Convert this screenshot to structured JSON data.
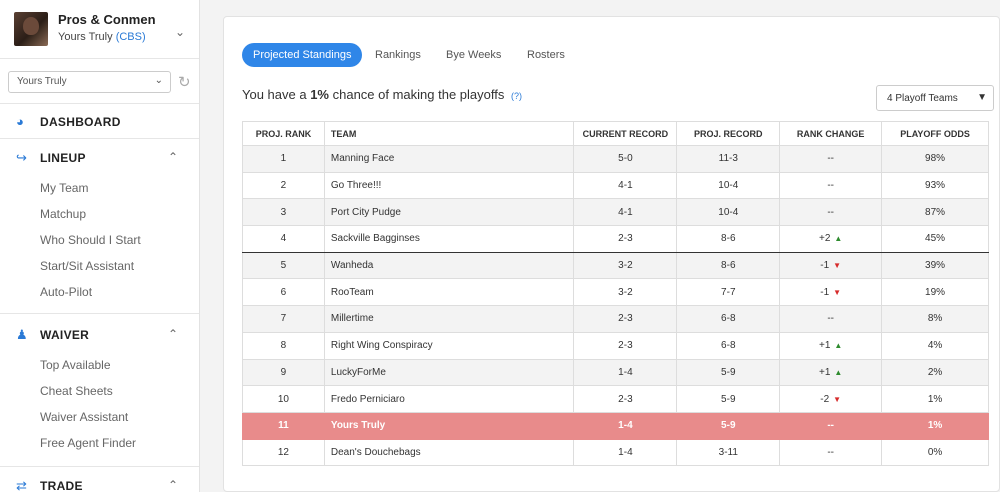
{
  "sidebar": {
    "league_name": "Pros & Conmen",
    "team_owner": "Yours Truly",
    "provider": "(CBS)",
    "team_select_value": "Yours Truly",
    "sections": {
      "dashboard": "DASHBOARD",
      "lineup": "LINEUP",
      "waiver": "WAIVER",
      "trade": "TRADE"
    },
    "lineup_items": [
      "My Team",
      "Matchup",
      "Who Should I Start",
      "Start/Sit Assistant",
      "Auto-Pilot"
    ],
    "waiver_items": [
      "Top Available",
      "Cheat Sheets",
      "Waiver Assistant",
      "Free Agent Finder"
    ],
    "colors": {
      "accent": "#2a7ad6"
    }
  },
  "main": {
    "tabs": [
      "Projected Standings",
      "Rankings",
      "Bye Weeks",
      "Rosters"
    ],
    "active_tab": "Projected Standings",
    "summary": {
      "prefix": "You have a ",
      "percent": "1%",
      "suffix": " chance of making the playoffs",
      "help": "(?)"
    },
    "playoff_select_value": "4 Playoff Teams",
    "table": {
      "headers": [
        "PROJ. RANK",
        "TEAM",
        "CURRENT RECORD",
        "PROJ. RECORD",
        "RANK CHANGE",
        "PLAYOFF ODDS"
      ],
      "rows": [
        {
          "rank": "1",
          "team": "Manning Face",
          "current": "5-0",
          "proj": "11-3",
          "change": "--",
          "dir": "",
          "odds": "98%"
        },
        {
          "rank": "2",
          "team": "Go Three!!!",
          "current": "4-1",
          "proj": "10-4",
          "change": "--",
          "dir": "",
          "odds": "93%"
        },
        {
          "rank": "3",
          "team": "Port City Pudge",
          "current": "4-1",
          "proj": "10-4",
          "change": "--",
          "dir": "",
          "odds": "87%"
        },
        {
          "rank": "4",
          "team": "Sackville Bagginses",
          "current": "2-3",
          "proj": "8-6",
          "change": "+2",
          "dir": "up",
          "odds": "45%"
        },
        {
          "rank": "5",
          "team": "Wanheda",
          "current": "3-2",
          "proj": "8-6",
          "change": "-1",
          "dir": "down",
          "odds": "39%"
        },
        {
          "rank": "6",
          "team": "RooTeam",
          "current": "3-2",
          "proj": "7-7",
          "change": "-1",
          "dir": "down",
          "odds": "19%"
        },
        {
          "rank": "7",
          "team": "Millertime",
          "current": "2-3",
          "proj": "6-8",
          "change": "--",
          "dir": "",
          "odds": "8%"
        },
        {
          "rank": "8",
          "team": "Right Wing Conspiracy",
          "current": "2-3",
          "proj": "6-8",
          "change": "+1",
          "dir": "up",
          "odds": "4%"
        },
        {
          "rank": "9",
          "team": "LuckyForMe",
          "current": "1-4",
          "proj": "5-9",
          "change": "+1",
          "dir": "up",
          "odds": "2%"
        },
        {
          "rank": "10",
          "team": "Fredo Perniciaro",
          "current": "2-3",
          "proj": "5-9",
          "change": "-2",
          "dir": "down",
          "odds": "1%"
        },
        {
          "rank": "11",
          "team": "Yours Truly",
          "current": "1-4",
          "proj": "5-9",
          "change": "--",
          "dir": "",
          "odds": "1%"
        },
        {
          "rank": "12",
          "team": "Dean's Douchebags",
          "current": "1-4",
          "proj": "3-11",
          "change": "--",
          "dir": "",
          "odds": "0%"
        }
      ],
      "highlight_team": "Yours Truly",
      "playoff_cutline_after_rank": 4
    },
    "colors": {
      "tab_active": "#2f86e8",
      "highlight_row": "#e88b8b",
      "up": "#2e8b2e",
      "down": "#d62b2b"
    }
  }
}
